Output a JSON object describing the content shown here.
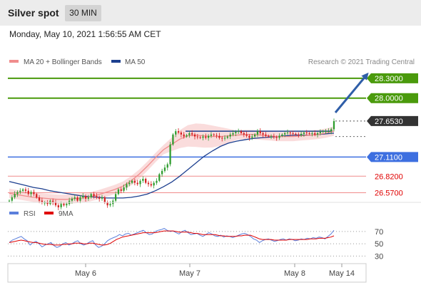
{
  "header": {
    "title": "Silver spot",
    "timeframe": "30 MIN"
  },
  "datetime": "Monday, May 10, 2021 1:56:55 AM CET",
  "legend": {
    "ma20": "MA 20 + Bollinger Bands",
    "ma50": "MA 50",
    "credit": "Research © 2021 Trading Central"
  },
  "indicator_legend": {
    "rsi": "RSI",
    "ma9": "9MA"
  },
  "colors": {
    "green": "#4a9a0c",
    "blue": "#3d6fe0",
    "red_line": "#f08c8c",
    "red_text": "#e00000",
    "ma20": "#f08c8c",
    "ma50": "#1c3f8f",
    "bands": "#f9d6d6",
    "candle_up": "#2e9c2e",
    "candle_down": "#d42020",
    "arrow": "#2f5ea8",
    "current": "#333333"
  },
  "chart_data": [
    {
      "type": "line",
      "title": "Silver spot",
      "timeframe": "30 MIN",
      "ylim": [
        26.36,
        28.46
      ],
      "x_ticks": [
        "May 6",
        "May 7",
        "May 8",
        "May 14"
      ],
      "levels": [
        {
          "label": "28.3000",
          "value": 28.3,
          "kind": "resistance-target"
        },
        {
          "label": "28.0000",
          "value": 28.0,
          "kind": "resistance"
        },
        {
          "label": "27.6530",
          "value": 27.653,
          "kind": "current"
        },
        {
          "label": "27.1100",
          "value": 27.11,
          "kind": "pivot"
        },
        {
          "label": "26.8200",
          "value": 26.82,
          "kind": "support"
        },
        {
          "label": "26.5700",
          "value": 26.57,
          "kind": "support"
        }
      ],
      "series": [
        {
          "name": "Silver spot",
          "values": [
            26.45,
            26.5,
            26.55,
            26.58,
            26.6,
            26.62,
            26.6,
            26.55,
            26.58,
            26.55,
            26.5,
            26.45,
            26.42,
            26.42,
            26.4,
            26.45,
            26.42,
            26.38,
            26.35,
            26.4,
            26.38,
            26.4,
            26.45,
            26.48,
            26.5,
            26.45,
            26.5,
            26.52,
            26.48,
            26.5,
            26.55,
            26.52,
            26.5,
            26.48,
            26.5,
            26.42,
            26.38,
            26.4,
            26.45,
            26.55,
            26.62,
            26.6,
            26.65,
            26.7,
            26.72,
            26.75,
            26.72,
            26.7,
            26.75,
            26.78,
            26.72,
            26.7,
            26.68,
            26.72,
            26.75,
            26.85,
            26.9,
            26.95,
            27.0,
            27.3,
            27.45,
            27.5,
            27.48,
            27.45,
            27.42,
            27.44,
            27.47,
            27.45,
            27.42,
            27.41,
            27.4,
            27.42,
            27.4,
            27.43,
            27.45,
            27.44,
            27.43,
            27.4,
            27.39,
            27.4,
            27.42,
            27.45,
            27.47,
            27.49,
            27.5,
            27.47,
            27.45,
            27.43,
            27.4,
            27.42,
            27.45,
            27.5,
            27.47,
            27.45,
            27.43,
            27.42,
            27.42,
            27.41,
            27.4,
            27.43,
            27.45,
            27.47,
            27.48,
            27.47,
            27.46,
            27.45,
            27.44,
            27.46,
            27.48,
            27.47,
            27.46,
            27.47,
            27.45,
            27.47,
            27.49,
            27.5,
            27.5,
            27.5,
            27.53,
            27.653
          ]
        },
        {
          "name": "MA 50",
          "values": [
            26.74,
            26.71,
            26.68,
            26.65,
            26.63,
            26.6,
            26.58,
            26.56,
            26.54,
            26.52,
            26.51,
            26.5,
            26.49,
            26.49,
            26.49,
            26.5,
            26.52,
            26.55,
            26.6,
            26.66,
            26.73,
            26.82,
            26.92,
            27.02,
            27.12,
            27.2,
            27.27,
            27.32,
            27.35,
            27.37,
            27.39,
            27.4,
            27.41,
            27.42,
            27.43,
            27.44,
            27.44,
            27.44,
            27.45,
            27.46,
            27.47
          ]
        },
        {
          "name": "MA 20",
          "values": [
            26.56,
            26.54,
            26.52,
            26.5,
            26.49,
            26.48,
            26.47,
            26.47,
            26.48,
            26.49,
            26.51,
            26.54,
            26.58,
            26.62,
            26.67,
            26.75,
            26.85,
            26.97,
            27.1,
            27.22,
            27.3,
            27.38,
            27.43,
            27.44,
            27.43,
            27.42,
            27.42,
            27.43,
            27.44,
            27.45,
            27.45,
            27.44,
            27.43,
            27.42,
            27.42,
            27.42,
            27.43,
            27.44,
            27.45,
            27.47,
            27.5
          ]
        }
      ]
    },
    {
      "type": "line",
      "title": "",
      "ylim": [
        20,
        85
      ],
      "y_ticks": [
        70,
        50,
        30
      ],
      "series": [
        {
          "name": "RSI",
          "values": [
            52,
            56,
            58,
            60,
            62,
            58,
            55,
            48,
            52,
            54,
            50,
            45,
            48,
            50,
            52,
            47,
            44,
            46,
            50,
            52,
            48,
            50,
            53,
            55,
            50,
            48,
            50,
            53,
            55,
            48,
            44,
            46,
            50,
            55,
            58,
            60,
            62,
            65,
            63,
            66,
            67,
            64,
            66,
            68,
            70,
            72,
            68,
            65,
            66,
            70,
            72,
            73,
            75,
            72,
            70,
            71,
            68,
            66,
            70,
            72,
            68,
            65,
            66,
            67,
            64,
            62,
            65,
            68,
            66,
            63,
            62,
            64,
            61,
            63,
            62,
            60,
            62,
            64,
            66,
            67,
            65,
            62,
            58,
            56,
            52,
            55,
            57,
            58,
            56,
            54,
            55,
            57,
            58,
            56,
            58,
            57,
            55,
            56,
            58,
            57,
            59,
            58,
            60,
            59,
            61,
            60,
            58,
            62,
            66,
            72
          ]
        },
        {
          "name": "9MA",
          "values": [
            52,
            53,
            54,
            55,
            56,
            55,
            54,
            53,
            52,
            52,
            51,
            50,
            49,
            49,
            49,
            48,
            48,
            48,
            49,
            49,
            50,
            50,
            51,
            51,
            51,
            50,
            50,
            51,
            51,
            50,
            49,
            48,
            48,
            49,
            51,
            54,
            57,
            59,
            61,
            62,
            63,
            64,
            65,
            66,
            67,
            68,
            68,
            68,
            68,
            68,
            69,
            70,
            71,
            71,
            71,
            71,
            70,
            69,
            69,
            69,
            69,
            68,
            67,
            67,
            66,
            65,
            65,
            65,
            65,
            65,
            64,
            63,
            63,
            62,
            62,
            62,
            62,
            63,
            63,
            64,
            64,
            64,
            62,
            60,
            58,
            57,
            57,
            57,
            57,
            56,
            56,
            56,
            56,
            56,
            57,
            57,
            57,
            57,
            57,
            57,
            57,
            58,
            58,
            58,
            59,
            59,
            59,
            60,
            61,
            63
          ]
        }
      ]
    }
  ]
}
